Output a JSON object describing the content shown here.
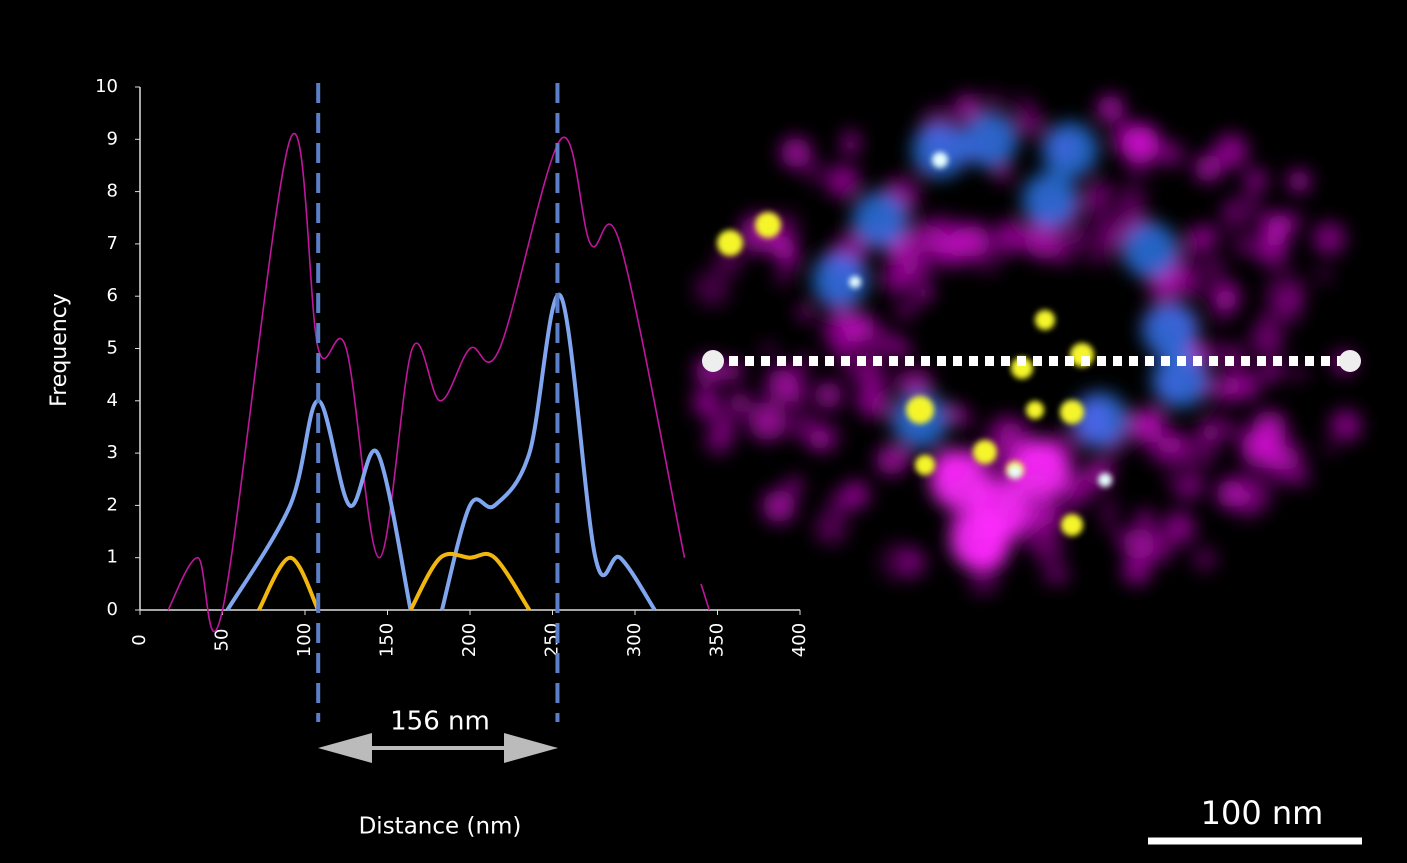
{
  "chart_data": {
    "type": "line",
    "series": [
      {
        "color": "#c0169e",
        "width": 1.6,
        "x": [
          17,
          35,
          50,
          91,
          108,
          125,
          145,
          165,
          182,
          200,
          218,
          255,
          273,
          291,
          330,
          null,
          340,
          345
        ],
        "values": [
          0,
          1,
          0,
          9,
          5,
          5,
          1,
          5,
          4,
          5,
          5,
          9,
          7,
          7,
          1,
          null,
          0.5,
          0
        ]
      },
      {
        "color": "#7fa6ee",
        "width": 4,
        "x": [
          53,
          91,
          108,
          127,
          144,
          164,
          null,
          183,
          200,
          215,
          236,
          255,
          276,
          291,
          312
        ],
        "values": [
          0,
          2,
          4,
          2,
          3,
          0,
          null,
          0,
          2,
          2,
          3,
          6,
          1,
          1,
          0
        ]
      },
      {
        "color": "#f2b70f",
        "width": 4,
        "x": [
          72,
          91,
          108,
          null,
          164,
          182,
          200,
          215,
          236
        ],
        "values": [
          0,
          1,
          0,
          null,
          0,
          1,
          1,
          1,
          0
        ]
      }
    ],
    "xlim": [
      0,
      400
    ],
    "xticks": [
      0,
      50,
      100,
      150,
      200,
      250,
      300,
      350,
      400
    ],
    "ylim": [
      0,
      10
    ],
    "yticks": [
      0,
      1,
      2,
      3,
      4,
      5,
      6,
      7,
      8,
      9,
      10
    ],
    "y_label": "Frequency",
    "x_label": "Distance (nm)",
    "reference_lines": [
      108,
      253
    ],
    "annotation": "156 nm",
    "scale_bar": "100 nm"
  }
}
